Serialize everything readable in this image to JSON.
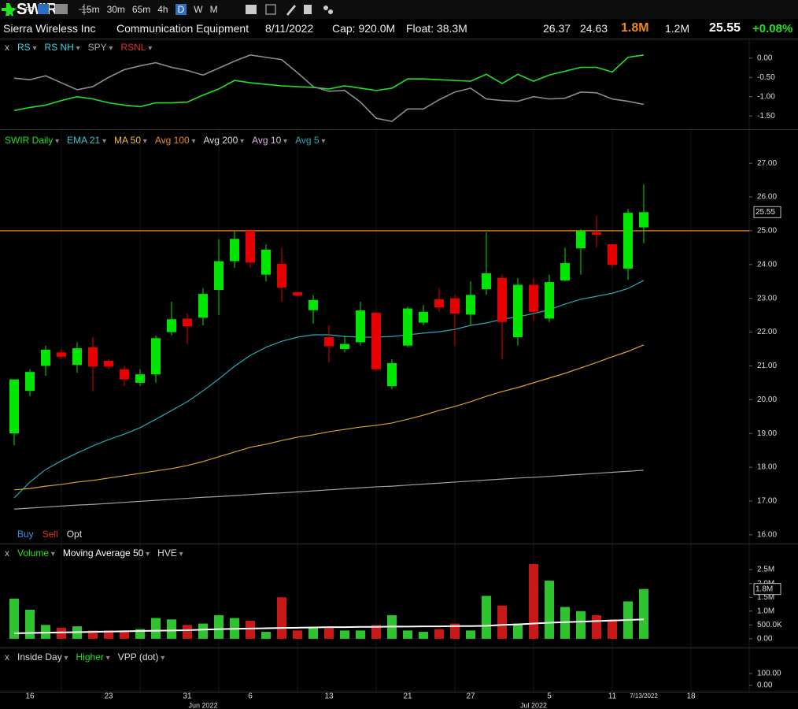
{
  "header": {
    "symbol": "SWIR",
    "timeframes": [
      "15m",
      "30m",
      "65m",
      "4h",
      "D",
      "W",
      "M"
    ],
    "active_timeframe": "D",
    "company": "Sierra Wireless Inc",
    "industry": "Communication Equipment",
    "date": "8/11/2022",
    "cap": "Cap: 920.0M",
    "float": "Float: 38.3M",
    "high": "26.37",
    "low": "24.63",
    "volume": "1.8M",
    "avg_volume": "1.2M",
    "last": "25.55",
    "change": "+0.08%"
  },
  "x_axis": {
    "days": [
      null,
      "16",
      null,
      null,
      null,
      null,
      "23",
      null,
      null,
      null,
      null,
      "31",
      null,
      null,
      null,
      "6",
      null,
      null,
      null,
      null,
      "13",
      null,
      null,
      null,
      null,
      "21",
      null,
      null,
      null,
      "27",
      null,
      null,
      null,
      null,
      "5",
      null,
      null,
      null,
      "11",
      null,
      "7/13/2022",
      null,
      null,
      "18",
      null,
      null,
      null
    ],
    "months": [
      null,
      null,
      null,
      null,
      null,
      null,
      null,
      null,
      null,
      null,
      null,
      null,
      "Jun 2022",
      null,
      null,
      null,
      null,
      null,
      null,
      null,
      null,
      null,
      null,
      null,
      null,
      null,
      null,
      null,
      null,
      null,
      null,
      null,
      null,
      "Jul 2022",
      null,
      null,
      null,
      null,
      null,
      null,
      null,
      null,
      null,
      null,
      null,
      null,
      null
    ]
  },
  "chart_data": [
    {
      "type": "line",
      "legend": [
        {
          "name": "x",
          "color": "#bbbbbb"
        },
        {
          "name": "RS",
          "color": "#38d9e6"
        },
        {
          "name": "RS NH",
          "color": "#38d9e6"
        },
        {
          "name": "SPY",
          "color": "#aaaaaa"
        },
        {
          "name": "RSNL",
          "color": "#e03030"
        }
      ],
      "ylim": [
        -1.66,
        0.24
      ],
      "yticks": [
        {
          "value": 0,
          "label": "0.00"
        },
        {
          "value": -0.5,
          "label": "-0.50"
        },
        {
          "value": -1,
          "label": "-1.00"
        },
        {
          "value": -1.5,
          "label": "-1.50"
        }
      ],
      "series": [
        {
          "color": "#22e022",
          "values": [
            -1.36,
            -1.28,
            -1.22,
            -1.1,
            -1.0,
            -1.06,
            -1.16,
            -1.22,
            -1.26,
            -1.16,
            -1.16,
            -1.14,
            -0.96,
            -0.8,
            -0.58,
            -0.64,
            -0.68,
            -0.72,
            -0.74,
            -0.76,
            -0.8,
            -0.72,
            -0.78,
            -0.84,
            -0.78,
            -0.54,
            -0.54,
            -0.56,
            -0.58,
            -0.6,
            -0.42,
            -0.66,
            -0.42,
            -0.6,
            -0.44,
            -0.34,
            -0.24,
            -0.24,
            -0.36,
            0.02,
            0.08
          ]
        },
        {
          "color": "#8c8c8c",
          "values": [
            -0.52,
            -0.56,
            -0.46,
            -0.64,
            -0.82,
            -0.74,
            -0.5,
            -0.3,
            -0.2,
            -0.12,
            -0.24,
            -0.32,
            -0.44,
            -0.26,
            -0.08,
            0.08,
            0.02,
            -0.04,
            -0.38,
            -0.74,
            -0.86,
            -0.84,
            -1.14,
            -1.56,
            -1.64,
            -1.32,
            -1.32,
            -1.08,
            -0.88,
            -0.78,
            -1.06,
            -1.1,
            -1.12,
            -1.0,
            -1.06,
            -1.04,
            -0.88,
            -0.9,
            -1.06,
            -1.12,
            -1.2
          ]
        }
      ]
    },
    {
      "type": "candlestick",
      "legend": [
        {
          "name": "SWIR Daily",
          "color": "#22e022"
        },
        {
          "name": "EMA 21",
          "color": "#38c8d6"
        },
        {
          "name": "MA 50",
          "color": "#f0c020"
        },
        {
          "name": "Avg 100",
          "color": "#f08a20"
        },
        {
          "name": "Avg 200",
          "color": "#dddddd"
        },
        {
          "name": "Avg 10",
          "color": "#e0b0e8"
        },
        {
          "name": "Avg 5",
          "color": "#2aa7b5"
        }
      ],
      "ylim": [
        15.74,
        27.4
      ],
      "yticks": [
        {
          "value": 27,
          "label": "27.00"
        },
        {
          "value": 26,
          "label": "26.00"
        },
        {
          "value": 25,
          "label": "25.00"
        },
        {
          "value": 24,
          "label": "24.00"
        },
        {
          "value": 23,
          "label": "23.00"
        },
        {
          "value": 22,
          "label": "22.00"
        },
        {
          "value": 21,
          "label": "21.00"
        },
        {
          "value": 20,
          "label": "20.00"
        },
        {
          "value": 19,
          "label": "19.00"
        },
        {
          "value": 18,
          "label": "18.00"
        },
        {
          "value": 17,
          "label": "17.00"
        },
        {
          "value": 16,
          "label": "16.00"
        }
      ],
      "up_color": "#00e600",
      "down_color": "#e60000",
      "hline": 25,
      "hline_color": "#e07a10",
      "trade_buttons": [
        {
          "name": "Buy",
          "color": "#3a8ef0"
        },
        {
          "name": "Sell",
          "color": "#e03030"
        },
        {
          "name": "Opt",
          "color": "#dddddd"
        }
      ],
      "open": [
        19.0,
        20.26,
        21.0,
        21.4,
        21.03,
        21.55,
        21.15,
        20.9,
        20.5,
        20.75,
        22.0,
        22.4,
        22.43,
        23.25,
        24.1,
        25.0,
        23.7,
        24.02,
        23.18,
        22.65,
        21.85,
        21.5,
        21.7,
        22.57,
        20.4,
        21.6,
        22.28,
        22.97,
        23.0,
        22.52,
        23.27,
        23.6,
        21.85,
        23.4,
        22.4,
        23.53,
        24.48,
        24.95,
        24.6,
        23.88,
        25.1
      ],
      "high": [
        20.6,
        20.9,
        21.6,
        21.5,
        21.7,
        21.85,
        21.2,
        21.0,
        20.9,
        21.9,
        22.9,
        22.55,
        23.3,
        24.75,
        25.0,
        25.05,
        24.6,
        24.5,
        23.2,
        23.1,
        22.2,
        21.9,
        22.9,
        22.6,
        21.2,
        22.75,
        22.8,
        23.3,
        23.1,
        23.5,
        24.95,
        23.7,
        23.6,
        23.6,
        23.7,
        24.5,
        25.05,
        25.45,
        24.6,
        25.65,
        26.37
      ],
      "low": [
        18.65,
        20.1,
        20.7,
        21.2,
        20.8,
        20.25,
        20.9,
        20.4,
        20.4,
        20.5,
        21.9,
        21.65,
        22.2,
        22.5,
        23.9,
        23.9,
        23.5,
        22.9,
        23.05,
        22.25,
        21.1,
        21.4,
        21.6,
        20.85,
        20.3,
        21.55,
        22.2,
        22.6,
        21.6,
        22.2,
        23.1,
        21.2,
        21.6,
        22.35,
        22.3,
        23.5,
        23.7,
        24.5,
        23.9,
        23.55,
        24.63
      ],
      "close": [
        20.6,
        20.82,
        21.48,
        21.27,
        21.52,
        20.98,
        20.98,
        20.6,
        20.75,
        21.82,
        22.38,
        22.17,
        23.13,
        24.1,
        24.76,
        24.06,
        24.44,
        23.32,
        23.08,
        22.95,
        21.58,
        21.65,
        22.64,
        20.9,
        21.08,
        22.7,
        22.6,
        22.73,
        22.55,
        23.1,
        23.74,
        22.3,
        23.4,
        22.6,
        23.48,
        24.04,
        25.0,
        24.88,
        23.99,
        25.53,
        25.55
      ],
      "series": [
        {
          "color": "#2aa7b5",
          "values": [
            17.09,
            17.56,
            17.93,
            18.19,
            18.42,
            18.63,
            18.82,
            18.98,
            19.17,
            19.42,
            19.68,
            19.94,
            20.26,
            20.61,
            20.99,
            21.31,
            21.55,
            21.73,
            21.85,
            21.92,
            21.92,
            21.87,
            21.85,
            21.85,
            21.87,
            21.92,
            21.97,
            22.01,
            22.08,
            22.2,
            22.27,
            22.38,
            22.45,
            22.55,
            22.66,
            22.83,
            22.97,
            23.06,
            23.15,
            23.29,
            23.53
          ]
        },
        {
          "color": "#d9a520",
          "values": [
            17.33,
            17.37,
            17.44,
            17.49,
            17.56,
            17.61,
            17.68,
            17.75,
            17.82,
            17.89,
            17.96,
            18.05,
            18.17,
            18.31,
            18.45,
            18.59,
            18.68,
            18.79,
            18.89,
            18.96,
            19.05,
            19.12,
            19.19,
            19.24,
            19.31,
            19.42,
            19.54,
            19.68,
            19.8,
            19.94,
            20.1,
            20.24,
            20.36,
            20.5,
            20.64,
            20.78,
            20.94,
            21.1,
            21.27,
            21.43,
            21.62
          ]
        },
        {
          "color": "#a0a0a0",
          "values": [
            16.76,
            16.79,
            16.82,
            16.85,
            16.88,
            16.9,
            16.93,
            16.96,
            16.99,
            17.02,
            17.05,
            17.08,
            17.11,
            17.13,
            17.16,
            17.19,
            17.22,
            17.24,
            17.27,
            17.3,
            17.33,
            17.36,
            17.39,
            17.42,
            17.44,
            17.47,
            17.5,
            17.53,
            17.56,
            17.59,
            17.62,
            17.65,
            17.68,
            17.7,
            17.73,
            17.76,
            17.79,
            17.82,
            17.85,
            17.88,
            17.91
          ]
        }
      ]
    },
    {
      "type": "bar",
      "legend": [
        {
          "name": "x",
          "color": "#bbbbbb"
        },
        {
          "name": "Volume",
          "color": "#22e022"
        },
        {
          "name": "Moving Average 50",
          "color": "#ffffff"
        },
        {
          "name": "HVE",
          "color": "#dddddd"
        }
      ],
      "ylim": [
        -0.26,
        2.73
      ],
      "yticks": [
        {
          "value": 2.5,
          "label": "2.5M"
        },
        {
          "value": 2,
          "label": "2.0M"
        },
        {
          "value": 1.5,
          "label": "1.5M"
        },
        {
          "value": 1,
          "label": "1.0M"
        },
        {
          "value": 0.5,
          "label": "500.0K"
        },
        {
          "value": 0,
          "label": "0.00"
        }
      ],
      "up_color": "#2fc42f",
      "down_color": "#c81818",
      "values": [
        1.45,
        1.05,
        0.5,
        0.4,
        0.45,
        0.3,
        0.3,
        0.3,
        0.35,
        0.75,
        0.7,
        0.5,
        0.55,
        0.85,
        0.75,
        0.65,
        0.25,
        1.5,
        0.3,
        0.4,
        0.45,
        0.3,
        0.3,
        0.5,
        0.85,
        0.3,
        0.25,
        0.35,
        0.55,
        0.3,
        1.55,
        1.2,
        0.55,
        2.7,
        2.1,
        1.15,
        1.0,
        0.85,
        0.7,
        1.35,
        1.8
      ],
      "value_labels": [
        null,
        null,
        null,
        null,
        null,
        null,
        null,
        null,
        null,
        null,
        null,
        null,
        null,
        null,
        null,
        null,
        null,
        null,
        null,
        null,
        null,
        null,
        null,
        null,
        null,
        null,
        null,
        null,
        null,
        null,
        null,
        null,
        null,
        null,
        null,
        null,
        null,
        null,
        null,
        null,
        "1.8M"
      ],
      "series": [
        {
          "color": "#ffffff",
          "values": [
            0.2,
            0.21,
            0.22,
            0.23,
            0.24,
            0.25,
            0.26,
            0.27,
            0.28,
            0.29,
            0.3,
            0.31,
            0.33,
            0.35,
            0.36,
            0.37,
            0.38,
            0.39,
            0.4,
            0.41,
            0.42,
            0.42,
            0.43,
            0.43,
            0.44,
            0.44,
            0.45,
            0.45,
            0.46,
            0.46,
            0.47,
            0.5,
            0.52,
            0.55,
            0.58,
            0.6,
            0.62,
            0.64,
            0.66,
            0.68,
            0.7
          ]
        }
      ]
    },
    {
      "type": "markers",
      "legend": [
        {
          "name": "x",
          "color": "#bbbbbb"
        },
        {
          "name": "Inside Day",
          "color": "#dddddd"
        },
        {
          "name": "Higher",
          "color": "#22e022"
        },
        {
          "name": "VPP (dot)",
          "color": "#dddddd"
        }
      ],
      "ylim": [
        0,
        100
      ],
      "yticks": [
        {
          "value": 100,
          "label": "100.00"
        },
        {
          "value": 0,
          "label": "0.00"
        }
      ]
    }
  ]
}
